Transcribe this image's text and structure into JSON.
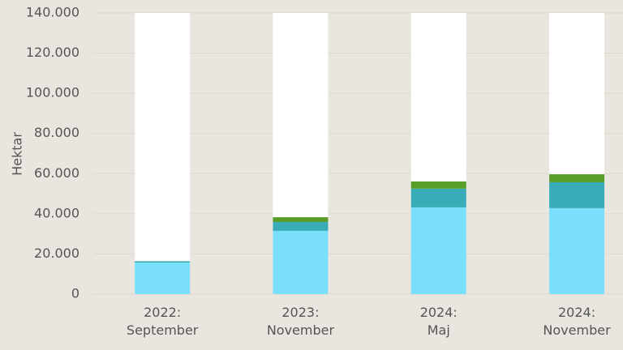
{
  "chart_data": {
    "type": "stacked-bar",
    "y_label": "Hektar",
    "categories": [
      "2022:\nSeptember",
      "2023:\nNovember",
      "2024:\nMaj",
      "2024:\nNovember"
    ],
    "series": [
      {
        "color": "#79dffb",
        "values": [
          15700,
          31500,
          43200,
          42800
        ]
      },
      {
        "color": "#38adb8",
        "values": [
          700,
          4400,
          9300,
          12900
        ]
      },
      {
        "color": "#5a9e2a",
        "values": [
          0,
          2400,
          3600,
          4000
        ]
      },
      {
        "color": "#ffffff",
        "values": [
          123600,
          101700,
          83900,
          80300
        ]
      }
    ],
    "ylim": [
      0,
      140000
    ],
    "yticks": [
      0,
      {
        "value": 20000,
        "label": "20.000"
      },
      {
        "value": 40000,
        "label": "40.000"
      },
      {
        "value": 60000,
        "label": "60.000"
      },
      {
        "value": 80000,
        "label": "80.000"
      },
      {
        "value": 100000,
        "label": "100.000"
      },
      {
        "value": 120000,
        "label": "120.000"
      },
      {
        "value": 140000,
        "label": "140.000"
      }
    ],
    "grid": true
  }
}
